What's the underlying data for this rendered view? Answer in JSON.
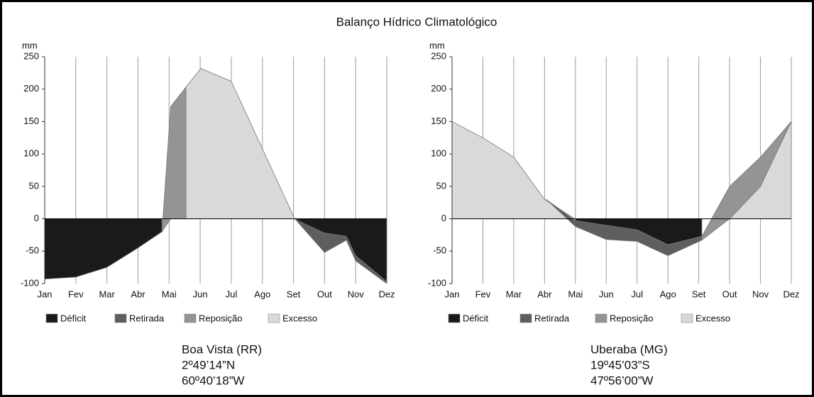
{
  "title": "Balanço Hídrico Climatológico",
  "chart_data": [
    {
      "type": "area",
      "ylabel": "mm",
      "caption": [
        "Boa Vista (RR)",
        "2º49’14”N",
        "60º40’18”W"
      ],
      "xlim": [
        1,
        12
      ],
      "xticks": [
        {
          "value": 1,
          "label": "Jan"
        },
        {
          "value": 2,
          "label": "Fev"
        },
        {
          "value": 3,
          "label": "Mar"
        },
        {
          "value": 4,
          "label": "Abr"
        },
        {
          "value": 5,
          "label": "Mai"
        },
        {
          "value": 6,
          "label": "Jun"
        },
        {
          "value": 7,
          "label": "Jul"
        },
        {
          "value": 8,
          "label": "Ago"
        },
        {
          "value": 9,
          "label": "Set"
        },
        {
          "value": 10,
          "label": "Out"
        },
        {
          "value": 11,
          "label": "Nov"
        },
        {
          "value": 12,
          "label": "Dez"
        }
      ],
      "ylim": [
        -100,
        250
      ],
      "yticks": [
        -100,
        -50,
        0,
        50,
        100,
        150,
        200,
        250
      ],
      "grid": true,
      "series": [
        {
          "name": "Déficit",
          "color": "#1a1a1a",
          "x": [
            1,
            2,
            3,
            4,
            4.77,
            null,
            9.1,
            10,
            10.7,
            11,
            12
          ],
          "values": [
            0,
            0,
            0,
            0,
            0,
            null,
            0,
            0,
            0,
            0,
            0
          ],
          "base": [
            -93,
            -90,
            -75,
            -45,
            -20,
            null,
            -2,
            -22,
            -27,
            -57,
            -97
          ]
        },
        {
          "name": "Retirada",
          "color": "#5e5e5e",
          "x": [
            9.04,
            10,
            10.7,
            11,
            12
          ],
          "values": [
            0,
            -22,
            -27,
            -57,
            -97
          ],
          "base": [
            0,
            -52,
            -33,
            -65,
            -100
          ]
        },
        {
          "name": "Reposição",
          "color": "#949494",
          "x": [
            4.77,
            5.05,
            5.54
          ],
          "values": [
            -20,
            173,
            203
          ],
          "base": [
            -20,
            0,
            0
          ]
        },
        {
          "name": "Excesso",
          "color": "#d9d9d9",
          "x": [
            5.54,
            6.02,
            7,
            9.04
          ],
          "values": [
            203,
            232,
            212,
            0
          ],
          "base": [
            0,
            0,
            0,
            0
          ]
        }
      ]
    },
    {
      "type": "area",
      "ylabel": "mm",
      "caption": [
        "Uberaba (MG)",
        "19º45’03”S",
        "47º56’00”W"
      ],
      "xlim": [
        1,
        12
      ],
      "xticks": [
        {
          "value": 1,
          "label": "Jan"
        },
        {
          "value": 2,
          "label": "Fev"
        },
        {
          "value": 3,
          "label": "Mar"
        },
        {
          "value": 4,
          "label": "Abr"
        },
        {
          "value": 5,
          "label": "Mai"
        },
        {
          "value": 6,
          "label": "Jun"
        },
        {
          "value": 7,
          "label": "Jul"
        },
        {
          "value": 8,
          "label": "Ago"
        },
        {
          "value": 9,
          "label": "Set"
        },
        {
          "value": 10,
          "label": "Out"
        },
        {
          "value": 11,
          "label": "Nov"
        },
        {
          "value": 12,
          "label": "Dez"
        }
      ],
      "ylim": [
        -100,
        250
      ],
      "yticks": [
        -100,
        -50,
        0,
        50,
        100,
        150,
        200,
        250
      ],
      "grid": true,
      "series": [
        {
          "name": "Déficit",
          "color": "#1a1a1a",
          "x": [
            5,
            6,
            7,
            8,
            9.1
          ],
          "values": [
            0,
            0,
            0,
            0,
            0
          ],
          "base": [
            -3,
            -10,
            -17,
            -40,
            -27
          ]
        },
        {
          "name": "Retirada",
          "color": "#5e5e5e",
          "x": [
            4.05,
            5,
            6,
            7,
            8,
            9.1
          ],
          "values": [
            30,
            -3,
            -10,
            -17,
            -40,
            -27
          ],
          "base": [
            30,
            -12,
            -32,
            -35,
            -57,
            -33
          ]
        },
        {
          "name": "Reposição",
          "color": "#949494",
          "x": [
            9.1,
            10,
            11,
            12
          ],
          "values": [
            -27,
            50,
            95,
            150
          ],
          "base": [
            -33,
            0,
            50,
            150
          ]
        },
        {
          "name": "Excesso",
          "color": "#d9d9d9",
          "x": [
            1,
            2,
            3,
            4,
            4.98,
            null,
            10,
            11,
            12
          ],
          "values": [
            150,
            125,
            95,
            30,
            0,
            null,
            0,
            50,
            150
          ],
          "base": [
            0,
            0,
            0,
            0,
            0,
            null,
            0,
            0,
            0
          ]
        }
      ]
    }
  ]
}
